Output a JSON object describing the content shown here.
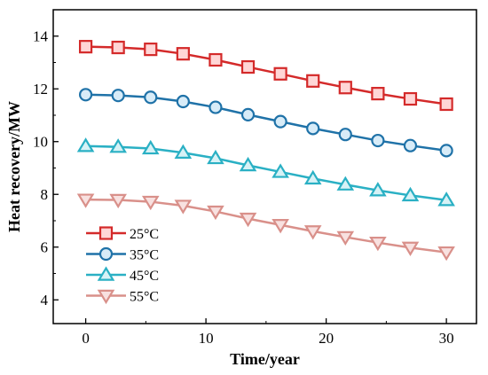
{
  "chart_data": {
    "type": "line",
    "xlabel": "Time/year",
    "ylabel": "Heat recovery/MW",
    "xlim": [
      -2.7,
      32.5
    ],
    "ylim": [
      3.1,
      15.0
    ],
    "xticks": [
      0,
      10,
      20,
      30
    ],
    "yticks": [
      4,
      6,
      8,
      10,
      12,
      14
    ],
    "grid": false,
    "legend_position": "bottom-left",
    "x": [
      0,
      2.7,
      5.4,
      8.1,
      10.8,
      13.5,
      16.2,
      18.9,
      21.6,
      24.3,
      27.0,
      30.0
    ],
    "series": [
      {
        "name": "25°C",
        "marker": "square",
        "color": "#d42a2a",
        "marker_fill": "#ffd6d6",
        "values": [
          13.6,
          13.57,
          13.5,
          13.33,
          13.1,
          12.83,
          12.57,
          12.3,
          12.05,
          11.82,
          11.62,
          11.42
        ]
      },
      {
        "name": "35°C",
        "marker": "circle",
        "color": "#1f72a8",
        "marker_fill": "#d8ecf8",
        "values": [
          11.78,
          11.75,
          11.68,
          11.52,
          11.3,
          11.02,
          10.76,
          10.5,
          10.27,
          10.04,
          9.85,
          9.66
        ]
      },
      {
        "name": "45°C",
        "marker": "triangle-up",
        "color": "#2ab0c4",
        "marker_fill": "#d7f2f6",
        "values": [
          9.83,
          9.8,
          9.74,
          9.58,
          9.37,
          9.1,
          8.85,
          8.6,
          8.37,
          8.15,
          7.96,
          7.78
        ]
      },
      {
        "name": "55°C",
        "marker": "triangle-down",
        "color": "#d9908a",
        "marker_fill": "#f8e1e0",
        "values": [
          7.8,
          7.79,
          7.72,
          7.57,
          7.35,
          7.08,
          6.84,
          6.6,
          6.38,
          6.17,
          5.98,
          5.8
        ]
      }
    ]
  }
}
